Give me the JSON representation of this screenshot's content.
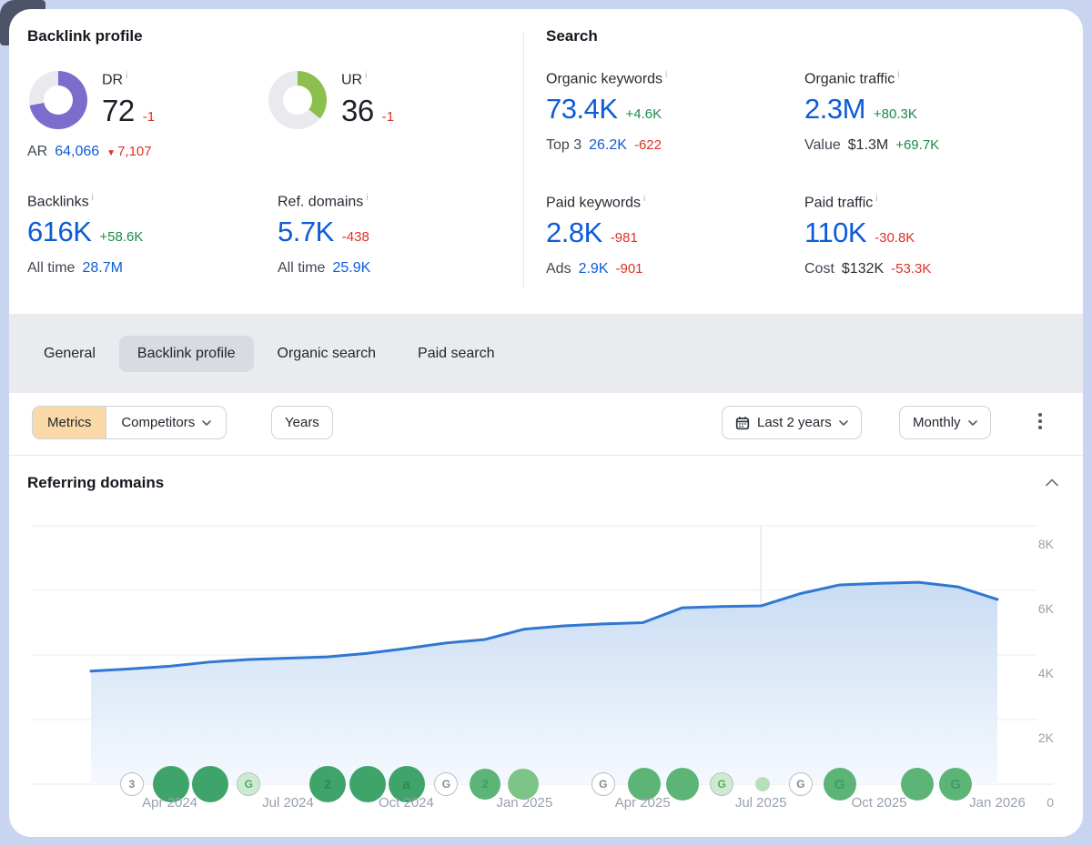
{
  "colors": {
    "accent_blue": "#0d5cd6",
    "positive_green": "#1b8a46",
    "negative_red": "#dd3125",
    "dr_purple": "#7d6ccc",
    "ur_green": "#8cbf4e",
    "metrics_active_bg": "#f9d9a7",
    "tabbar_bg": "#e9ebee"
  },
  "header": {
    "backlink_profile": {
      "title": "Backlink profile",
      "dr": {
        "label": "DR",
        "value": "72",
        "delta": "-1",
        "percent": 72,
        "color": "#7d6ccc"
      },
      "ur": {
        "label": "UR",
        "value": "36",
        "delta": "-1",
        "percent": 36,
        "color": "#8cbf4e"
      },
      "ar": {
        "label": "AR",
        "value": "64,066",
        "delta": "7,107"
      },
      "backlinks": {
        "label": "Backlinks",
        "value": "616K",
        "delta": "+58.6K",
        "alltime_label": "All time",
        "alltime_value": "28.7M"
      },
      "ref_domains": {
        "label": "Ref. domains",
        "value": "5.7K",
        "delta": "-438",
        "alltime_label": "All time",
        "alltime_value": "25.9K"
      }
    },
    "search": {
      "title": "Search",
      "organic_keywords": {
        "label": "Organic keywords",
        "value": "73.4K",
        "delta": "+4.6K",
        "sub_label": "Top 3",
        "sub_value": "26.2K",
        "sub_delta": "-622"
      },
      "organic_traffic": {
        "label": "Organic traffic",
        "value": "2.3M",
        "delta": "+80.3K",
        "sub_label": "Value",
        "sub_value": "$1.3M",
        "sub_delta": "+69.7K"
      },
      "paid_keywords": {
        "label": "Paid keywords",
        "value": "2.8K",
        "delta": "-981",
        "sub_label": "Ads",
        "sub_value": "2.9K",
        "sub_delta": "-901"
      },
      "paid_traffic": {
        "label": "Paid traffic",
        "value": "110K",
        "delta": "-30.8K",
        "sub_label": "Cost",
        "sub_value": "$132K",
        "sub_delta": "-53.3K"
      }
    }
  },
  "tabs": [
    {
      "label": "General",
      "active": false
    },
    {
      "label": "Backlink profile",
      "active": true
    },
    {
      "label": "Organic search",
      "active": false
    },
    {
      "label": "Paid search",
      "active": false
    }
  ],
  "toolbar": {
    "metrics_label": "Metrics",
    "competitors_label": "Competitors",
    "years_label": "Years",
    "range_label": "Last 2 years",
    "granularity_label": "Monthly"
  },
  "chart_data": {
    "type": "area",
    "title": "Referring domains",
    "x": [
      "Feb 2024",
      "Mar 2024",
      "Apr 2024",
      "May 2024",
      "Jun 2024",
      "Jul 2024",
      "Aug 2024",
      "Sep 2024",
      "Oct 2024",
      "Nov 2024",
      "Dec 2024",
      "Jan 2025",
      "Feb 2025",
      "Mar 2025",
      "Apr 2025",
      "May 2025",
      "Jun 2025",
      "Jul 2025",
      "Aug 2025",
      "Sep 2025",
      "Oct 2025",
      "Nov 2025",
      "Dec 2025",
      "Jan 2026"
    ],
    "values": [
      3500,
      3570,
      3650,
      3780,
      3860,
      3900,
      3940,
      4050,
      4200,
      4370,
      4480,
      4800,
      4900,
      4960,
      5000,
      5460,
      5500,
      5520,
      5900,
      6170,
      6220,
      6250,
      6110,
      5720
    ],
    "xticks": [
      "Apr 2024",
      "Jul 2024",
      "Oct 2024",
      "Jan 2025",
      "Apr 2025",
      "Jul 2025",
      "Oct 2025",
      "Jan 2026"
    ],
    "xtick_indices": [
      2,
      5,
      8,
      11,
      14,
      17,
      20,
      23
    ],
    "yticks": [
      "8K",
      "6K",
      "4K",
      "2K",
      "0"
    ],
    "ylim": [
      0,
      8000
    ],
    "grid": true,
    "legend": "none",
    "now_index": 17,
    "line_color": "#2f78d2",
    "area_top": "#c9dcf3",
    "area_bottom": "#f5f9fe",
    "marker_variants": {
      "dark": {
        "bg": "#3fa46a",
        "fg": "#2c8a55",
        "border": "none"
      },
      "mid": {
        "bg": "#5cb477",
        "fg": "#3e9e63",
        "border": "none"
      },
      "light": {
        "bg": "#7dc489",
        "fg": "#57ad6d",
        "border": "none"
      },
      "pale": {
        "bg": "#cdeccf",
        "fg": "#55a868",
        "border": "#b9bfc6"
      },
      "dot": {
        "bg": "#b7e0ba",
        "fg": "#b7e0ba",
        "border": "none"
      },
      "outline": {
        "bg": "#ffffff",
        "fg": "#828a95",
        "border": "#b9bfc6"
      }
    },
    "markers": [
      {
        "pos": 0.045,
        "size": 26,
        "variant": "outline",
        "glyph": "3"
      },
      {
        "pos": 0.088,
        "size": 40,
        "variant": "dark",
        "glyph": ""
      },
      {
        "pos": 0.132,
        "size": 40,
        "variant": "dark",
        "glyph": ""
      },
      {
        "pos": 0.174,
        "size": 26,
        "variant": "pale",
        "glyph": "G"
      },
      {
        "pos": 0.261,
        "size": 40,
        "variant": "dark",
        "glyph": "2"
      },
      {
        "pos": 0.305,
        "size": 40,
        "variant": "dark",
        "glyph": ""
      },
      {
        "pos": 0.348,
        "size": 40,
        "variant": "dark",
        "glyph": "a"
      },
      {
        "pos": 0.392,
        "size": 26,
        "variant": "outline",
        "glyph": "G"
      },
      {
        "pos": 0.435,
        "size": 34,
        "variant": "mid",
        "glyph": "2"
      },
      {
        "pos": 0.477,
        "size": 34,
        "variant": "light",
        "glyph": ""
      },
      {
        "pos": 0.565,
        "size": 26,
        "variant": "outline",
        "glyph": "G"
      },
      {
        "pos": 0.61,
        "size": 36,
        "variant": "mid",
        "glyph": ""
      },
      {
        "pos": 0.653,
        "size": 36,
        "variant": "mid",
        "glyph": ""
      },
      {
        "pos": 0.696,
        "size": 26,
        "variant": "pale",
        "glyph": "G"
      },
      {
        "pos": 0.741,
        "size": 16,
        "variant": "dot",
        "glyph": ""
      },
      {
        "pos": 0.783,
        "size": 26,
        "variant": "outline",
        "glyph": "G"
      },
      {
        "pos": 0.826,
        "size": 36,
        "variant": "mid",
        "glyph": "G"
      },
      {
        "pos": 0.912,
        "size": 36,
        "variant": "mid",
        "glyph": ""
      },
      {
        "pos": 0.954,
        "size": 36,
        "variant": "mid",
        "glyph": "G"
      }
    ]
  }
}
